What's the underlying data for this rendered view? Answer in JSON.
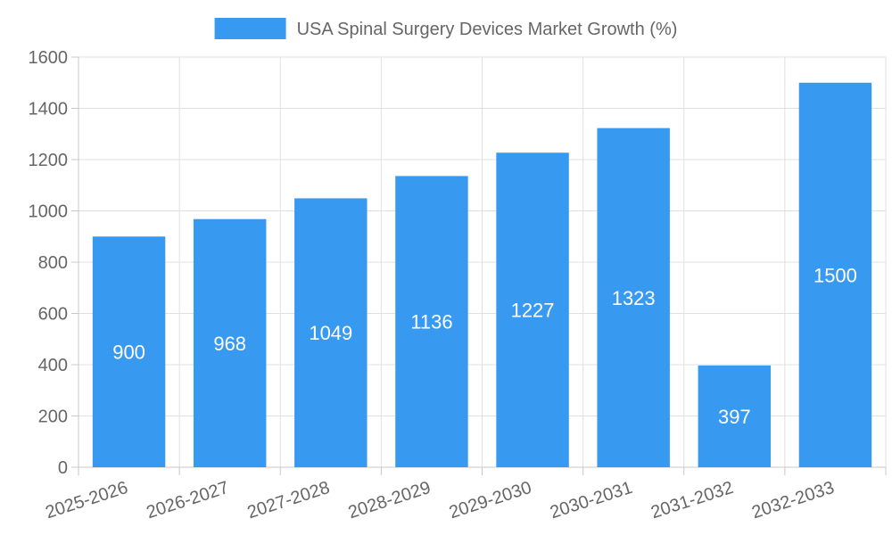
{
  "chart_data": {
    "type": "bar",
    "title": "",
    "legend": [
      {
        "label": "USA Spinal Surgery Devices Market Growth (%)",
        "color": "#3899f0"
      }
    ],
    "legend_position": "top-center",
    "categories": [
      "2025-2026",
      "2026-2027",
      "2027-2028",
      "2028-2029",
      "2029-2030",
      "2030-2031",
      "2031-2032",
      "2032-2033"
    ],
    "series": [
      {
        "name": "USA Spinal Surgery Devices Market Growth (%)",
        "values": [
          900,
          968,
          1049,
          1136,
          1227,
          1323,
          397,
          1500
        ],
        "color": "#3899f0"
      }
    ],
    "data_labels": [
      "900",
      "968",
      "1049",
      "1136",
      "1227",
      "1323",
      "397",
      "1500"
    ],
    "xlabel": "",
    "ylabel": "",
    "ylim": [
      0,
      1600
    ],
    "yticks": [
      "0",
      "200",
      "400",
      "600",
      "800",
      "1000",
      "1200",
      "1400",
      "1600"
    ],
    "grid": true
  }
}
